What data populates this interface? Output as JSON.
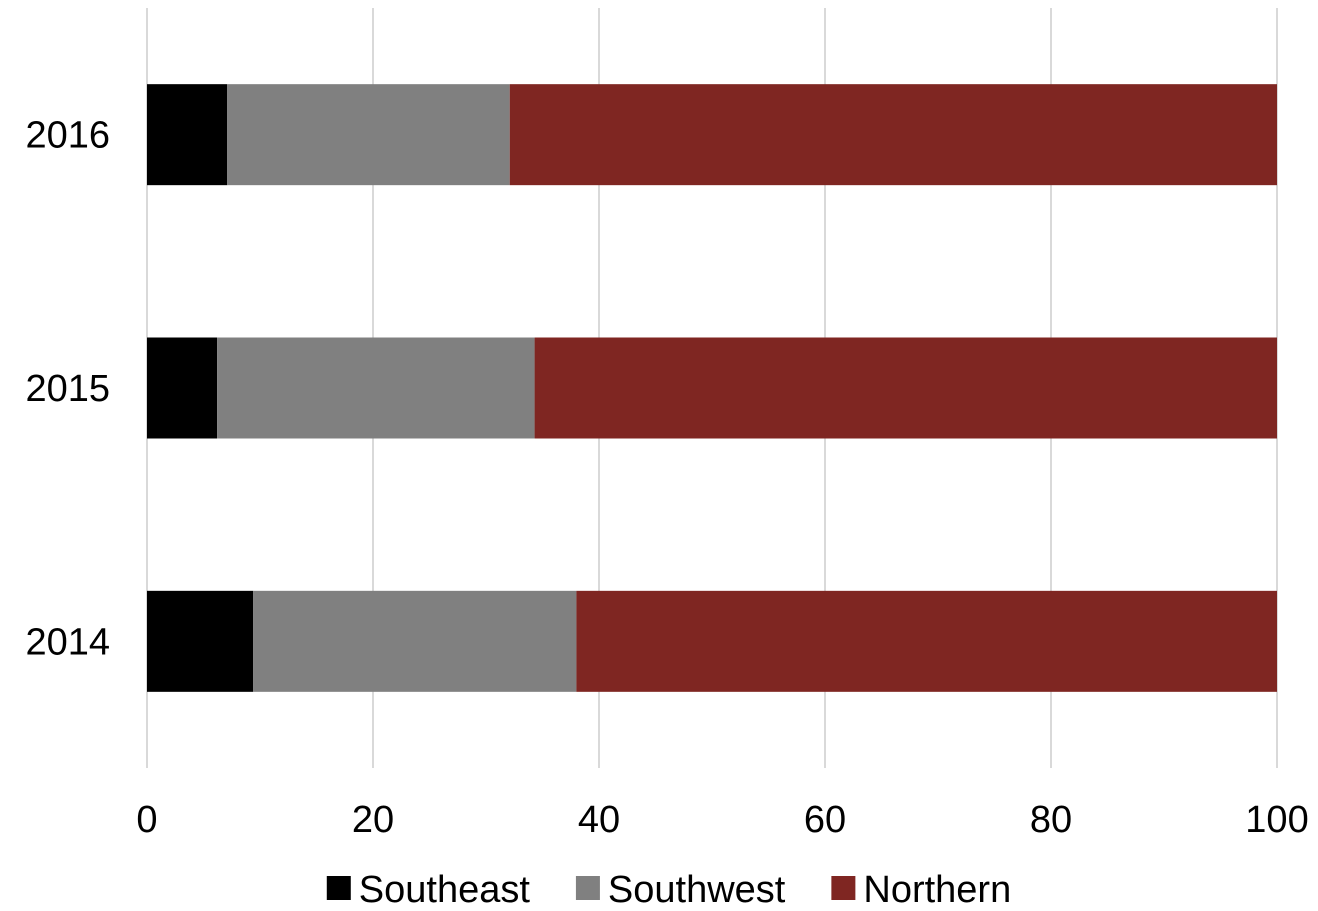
{
  "chart_data": {
    "type": "bar",
    "orientation": "horizontal",
    "stacked": true,
    "categories": [
      "2016",
      "2015",
      "2014"
    ],
    "series": [
      {
        "name": "Southeast",
        "values": [
          7.1,
          6.2,
          9.4
        ],
        "color": "#000000"
      },
      {
        "name": "Southwest",
        "values": [
          25.0,
          28.1,
          28.6
        ],
        "color": "#808080"
      },
      {
        "name": "Northern",
        "values": [
          67.9,
          65.7,
          62.0
        ],
        "color": "#7f2622"
      }
    ],
    "x_ticks": [
      "0",
      "20",
      "40",
      "60",
      "80",
      "100"
    ],
    "xlim": [
      0,
      100
    ],
    "grid": true,
    "legend_position": "bottom"
  }
}
